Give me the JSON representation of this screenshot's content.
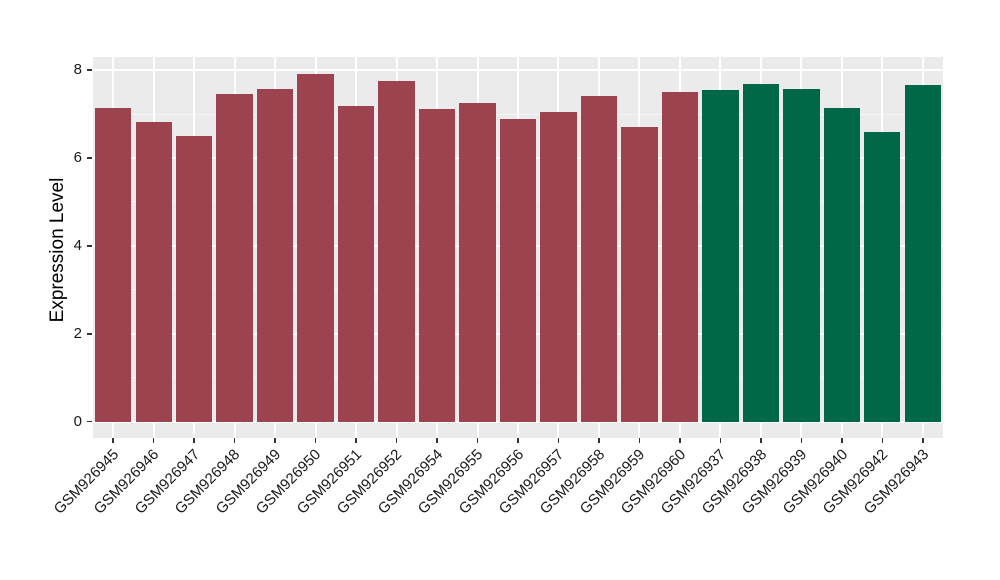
{
  "figure": {
    "background": "#FFFFFF",
    "panel_background": "#EBEBEB",
    "gridline_color": "#FFFFFF",
    "tick_mark_color": "#333333",
    "axis_text_color": "#1A1A1A"
  },
  "chart_data": {
    "type": "bar",
    "title": "",
    "xlabel": "",
    "ylabel": "Expression Level",
    "ylim": [
      0,
      8.3
    ],
    "yticks": [
      0,
      2,
      4,
      6,
      8
    ],
    "yticks_minor": [
      1,
      3,
      5,
      7
    ],
    "grid": true,
    "legend": false,
    "group_colors": {
      "group1": "#9C434F",
      "group2": "#006848"
    },
    "bars": [
      {
        "label": "GSM926945",
        "value": 7.14,
        "group": "group1"
      },
      {
        "label": "GSM926946",
        "value": 6.82,
        "group": "group1"
      },
      {
        "label": "GSM926947",
        "value": 6.5,
        "group": "group1"
      },
      {
        "label": "GSM926948",
        "value": 7.46,
        "group": "group1"
      },
      {
        "label": "GSM926949",
        "value": 7.58,
        "group": "group1"
      },
      {
        "label": "GSM926950",
        "value": 7.9,
        "group": "group1"
      },
      {
        "label": "GSM926951",
        "value": 7.18,
        "group": "group1"
      },
      {
        "label": "GSM926952",
        "value": 7.74,
        "group": "group1"
      },
      {
        "label": "GSM926954",
        "value": 7.11,
        "group": "group1"
      },
      {
        "label": "GSM926955",
        "value": 7.25,
        "group": "group1"
      },
      {
        "label": "GSM926956",
        "value": 6.88,
        "group": "group1"
      },
      {
        "label": "GSM926957",
        "value": 7.05,
        "group": "group1"
      },
      {
        "label": "GSM926958",
        "value": 7.41,
        "group": "group1"
      },
      {
        "label": "GSM926959",
        "value": 6.7,
        "group": "group1"
      },
      {
        "label": "GSM926960",
        "value": 7.49,
        "group": "group1"
      },
      {
        "label": "GSM926937",
        "value": 7.54,
        "group": "group2"
      },
      {
        "label": "GSM926938",
        "value": 7.68,
        "group": "group2"
      },
      {
        "label": "GSM926939",
        "value": 7.58,
        "group": "group2"
      },
      {
        "label": "GSM926940",
        "value": 7.13,
        "group": "group2"
      },
      {
        "label": "GSM926942",
        "value": 6.6,
        "group": "group2"
      },
      {
        "label": "GSM926943",
        "value": 7.65,
        "group": "group2"
      }
    ]
  }
}
